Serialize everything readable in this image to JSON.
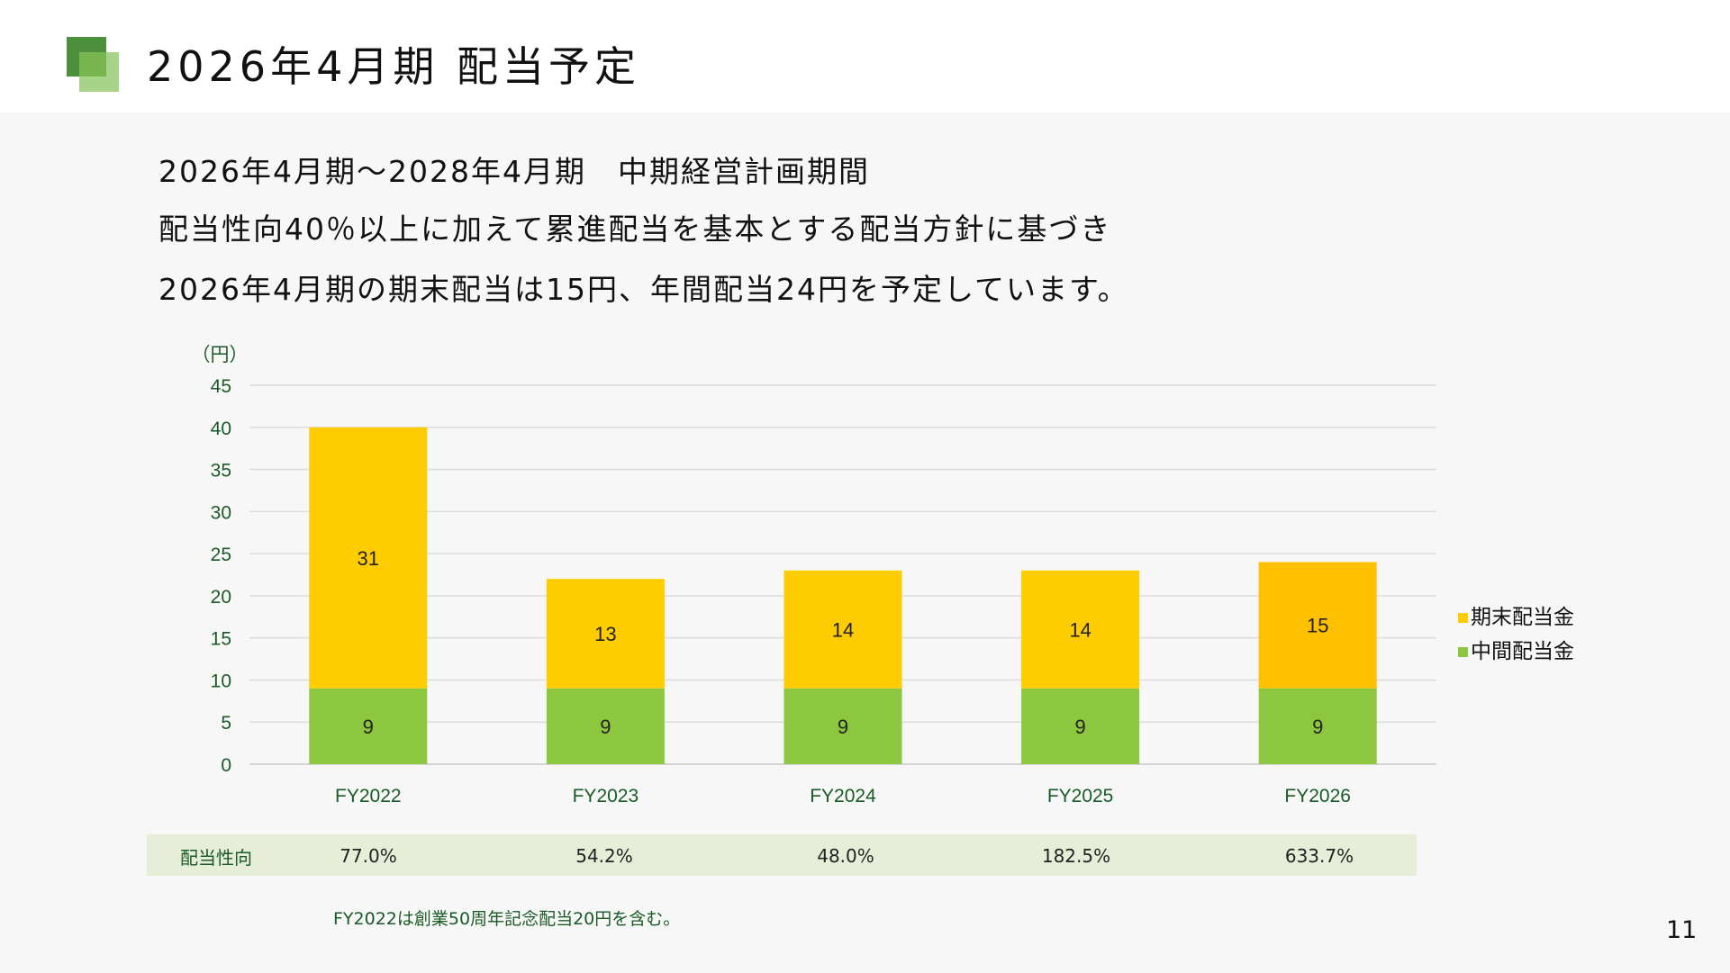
{
  "header": {
    "title": "2026年4月期 配当予定"
  },
  "intro": {
    "line1": "2026年4月期～2028年4月期　中期経営計画期間",
    "line2": "配当性向40％以上に加えて累進配当を基本とする配当方針に基づき",
    "line3": "2026年4月期の期末配当は15円、年間配当24円を予定しています。"
  },
  "chart_data": {
    "type": "bar",
    "stacked": true,
    "unit_label": "（円）",
    "categories": [
      "FY2022",
      "FY2023",
      "FY2024",
      "FY2025",
      "FY2026"
    ],
    "series": [
      {
        "name": "中間配当金",
        "values": [
          9,
          9,
          9,
          9,
          9
        ],
        "color": "#8dc63f"
      },
      {
        "name": "期末配当金",
        "values": [
          31,
          13,
          14,
          14,
          15
        ],
        "color": "#ffcc00",
        "highlight_color": "#ffc000"
      }
    ],
    "ylim": [
      0,
      45
    ],
    "yticks": [
      0,
      5,
      10,
      15,
      20,
      25,
      30,
      35,
      40,
      45
    ],
    "grid": true,
    "legend_position": "right",
    "highlighted_category": "FY2026"
  },
  "legend": {
    "items": [
      {
        "label": "期末配当金",
        "color": "#ffcc00"
      },
      {
        "label": "中間配当金",
        "color": "#8dc63f"
      }
    ]
  },
  "payout": {
    "label": "配当性向",
    "values": [
      "77.0%",
      "54.2%",
      "48.0%",
      "182.5%",
      "633.7%"
    ]
  },
  "footnote": "FY2022は創業50周年記念配当20円を含む。",
  "page_number": "11"
}
